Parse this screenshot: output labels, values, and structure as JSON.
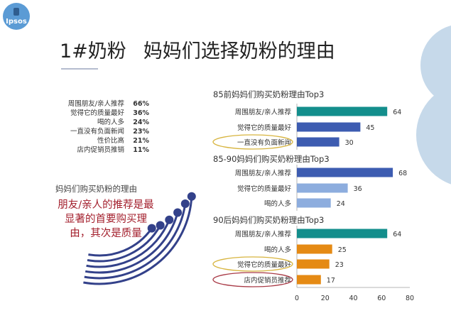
{
  "slide": {
    "title_model": "1#奶粉",
    "title_main": "妈妈们选择奶粉的理由",
    "logo_text": "Ipsos"
  },
  "radial": {
    "caption": "妈妈们购买奶粉的理由",
    "conclusion_lines": [
      "朋友/亲人的推荐是最",
      "显著的首要购买理",
      "由，其次是质量"
    ],
    "items": [
      {
        "label": "周围朋友/亲人推荐",
        "pct": "66%"
      },
      {
        "label": "觉得它的质量最好",
        "pct": "36%"
      },
      {
        "label": "喝的人多",
        "pct": "24%"
      },
      {
        "label": "一直没有负面新闻",
        "pct": "23%"
      },
      {
        "label": "性价比高",
        "pct": "21%"
      },
      {
        "label": "店内促销员推销",
        "pct": "11%"
      }
    ]
  },
  "colors": {
    "arc": "#33418a",
    "teal": "#138e8c",
    "blue": "#3d5cb1",
    "light_blue": "#8dadde",
    "orange": "#e58a14",
    "gold_outline": "#d7b43e",
    "red_outline": "#a93a46",
    "red_text": "#a31f2c",
    "deco_circle": "#c6d9ea",
    "logo": "#5b9bd5"
  },
  "chart_data": {
    "type": "bar",
    "orientation": "horizontal",
    "xlim": [
      0,
      80
    ],
    "xticks": [
      0,
      20,
      40,
      60,
      80
    ],
    "groups": [
      {
        "title": "85前妈妈们购买奶粉理由Top3",
        "categories": [
          "周围朋友/亲人推荐",
          "觉得它的质量最好",
          "一直没有负面新闻"
        ],
        "values": [
          64,
          45,
          30
        ],
        "colors": [
          "#138e8c",
          "#3d5cb1",
          "#3d5cb1"
        ],
        "highlight_index": 2,
        "highlight_color": "#d7b43e"
      },
      {
        "title": "85-90妈妈们购买奶粉理由Top3",
        "categories": [
          "周围朋友/亲人推荐",
          "觉得它的质量最好",
          "喝的人多"
        ],
        "values": [
          68,
          36,
          24
        ],
        "colors": [
          "#3d5cb1",
          "#8dadde",
          "#8dadde"
        ],
        "highlight_index": null,
        "highlight_color": null
      },
      {
        "title": "90后妈妈们购买奶粉理由Top3",
        "categories": [
          "周围朋友/亲人推荐",
          "喝的人多",
          "觉得它的质量最好",
          "店内促销员推荐"
        ],
        "values": [
          64,
          25,
          23,
          17
        ],
        "colors": [
          "#138e8c",
          "#e58a14",
          "#e58a14",
          "#e58a14"
        ],
        "highlight_index": [
          2,
          3
        ],
        "highlight_color": [
          "#d7b43e",
          "#a93a46"
        ]
      }
    ]
  }
}
